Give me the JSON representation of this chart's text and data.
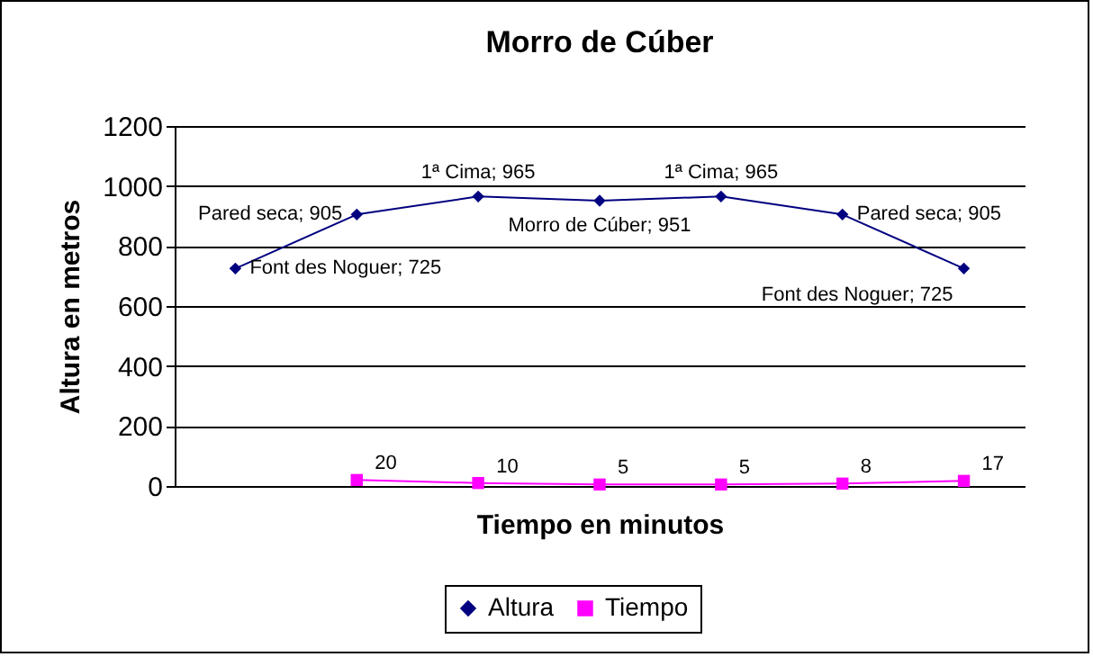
{
  "chart_data": {
    "type": "line",
    "title": "Morro de Cúber",
    "xlabel": "Tiempo en minutos",
    "ylabel": "Altura en metros",
    "categories": [
      null,
      null,
      null,
      null,
      null,
      null,
      null
    ],
    "series": [
      {
        "name": "Altura",
        "color": "#000080",
        "marker": "diamond",
        "values": [
          725,
          905,
          965,
          951,
          965,
          905,
          725
        ],
        "value_labels": [
          "Font des Noguer; 725",
          "Pared seca; 905",
          "1ª Cima; 965",
          "Morro de Cúber; 951",
          "1ª Cima; 965",
          "Pared seca; 905",
          "Font des Noguer; 725"
        ]
      },
      {
        "name": "Tiempo",
        "color": "#ff00ff",
        "marker": "square",
        "values": [
          null,
          20,
          10,
          5,
          5,
          8,
          17
        ],
        "value_labels": [
          null,
          "20",
          "10",
          "5",
          "5",
          "8",
          "17"
        ]
      }
    ],
    "ylim": [
      0,
      1200
    ],
    "yticks": [
      0,
      200,
      400,
      600,
      800,
      1000,
      1200
    ],
    "grid": "y",
    "legend": "bottom"
  }
}
